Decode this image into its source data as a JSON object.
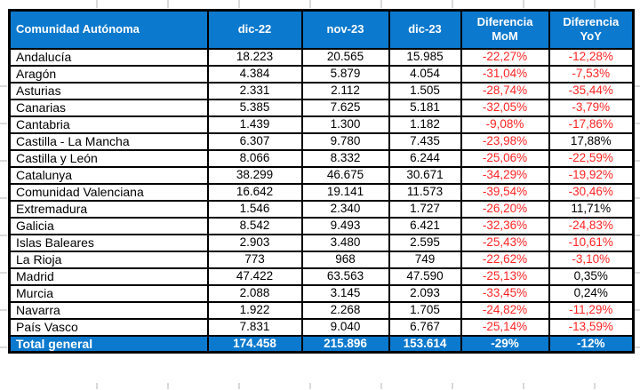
{
  "table": {
    "columns": [
      "Comunidad Autónoma",
      "dic-22",
      "nov-23",
      "dic-23",
      "Diferencia MoM",
      "Diferencia YoY"
    ],
    "rows": [
      [
        "Andalucía",
        "18.223",
        "20.565",
        "15.985",
        "-22,27%",
        "-12,28%"
      ],
      [
        "Aragón",
        "4.384",
        "5.879",
        "4.054",
        "-31,04%",
        "-7,53%"
      ],
      [
        "Asturias",
        "2.331",
        "2.112",
        "1.505",
        "-28,74%",
        "-35,44%"
      ],
      [
        "Canarias",
        "5.385",
        "7.625",
        "5.181",
        "-32,05%",
        "-3,79%"
      ],
      [
        "Cantabria",
        "1.439",
        "1.300",
        "1.182",
        "-9,08%",
        "-17,86%"
      ],
      [
        "Castilla - La Mancha",
        "6.307",
        "9.780",
        "7.435",
        "-23,98%",
        "17,88%"
      ],
      [
        "Castilla y León",
        "8.066",
        "8.332",
        "6.244",
        "-25,06%",
        "-22,59%"
      ],
      [
        "Catalunya",
        "38.299",
        "46.675",
        "30.671",
        "-34,29%",
        "-19,92%"
      ],
      [
        "Comunidad Valenciana",
        "16.642",
        "19.141",
        "11.573",
        "-39,54%",
        "-30,46%"
      ],
      [
        "Extremadura",
        "1.546",
        "2.340",
        "1.727",
        "-26,20%",
        "11,71%"
      ],
      [
        "Galicia",
        "8.542",
        "9.493",
        "6.421",
        "-32,36%",
        "-24,83%"
      ],
      [
        "Islas Baleares",
        "2.903",
        "3.480",
        "2.595",
        "-25,43%",
        "-10,61%"
      ],
      [
        "La Rioja",
        "773",
        "968",
        "749",
        "-22,62%",
        "-3,10%"
      ],
      [
        "Madrid",
        "47.422",
        "63.563",
        "47.590",
        "-25,13%",
        "0,35%"
      ],
      [
        "Murcia",
        "2.088",
        "3.145",
        "2.093",
        "-33,45%",
        "0,24%"
      ],
      [
        "Navarra",
        "1.922",
        "2.268",
        "1.705",
        "-24,82%",
        "-11,29%"
      ],
      [
        "País Vasco",
        "7.831",
        "9.040",
        "6.767",
        "-25,14%",
        "-13,59%"
      ]
    ],
    "total": [
      "Total general",
      "174.458",
      "215.896",
      "153.614",
      "-29%",
      "-12%"
    ]
  },
  "colors": {
    "header_bg": "#0b79ce",
    "header_text": "#ffffff",
    "negative": "#ff2424",
    "positive": "#000000",
    "border": "#000000",
    "gridline": "#d9d9d9"
  }
}
